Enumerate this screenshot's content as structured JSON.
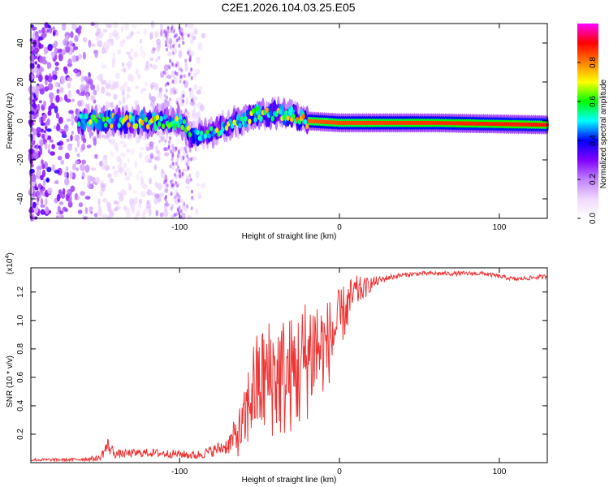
{
  "figure": {
    "title": "C2E1.2026.104.03.25.E05"
  },
  "chart_data": [
    {
      "type": "heatmap",
      "xlabel": "Height of straight line (km)",
      "ylabel": "Frequency (Hz)",
      "xlim": [
        -193,
        130
      ],
      "ylim": [
        -50,
        50
      ],
      "xticks": [
        -100,
        0,
        100
      ],
      "xtick_labels": [
        "-100",
        "0",
        "100"
      ],
      "yticks": [
        -40,
        -20,
        0,
        20,
        40
      ],
      "ytick_labels": [
        "-40",
        "-20",
        "0",
        "20",
        "40"
      ],
      "colorbar": {
        "label": "Normalized spectral amplitude",
        "range": [
          0.0,
          1.0
        ],
        "ticks": [
          0.0,
          0.2,
          0.4,
          0.6,
          0.8
        ],
        "tick_labels": [
          "0.0",
          "0.2",
          "0.4",
          "0.6",
          "0.8"
        ],
        "colors": [
          "#ffffff",
          "#f0d8ff",
          "#c080ff",
          "#8000ff",
          "#0000ff",
          "#00ffff",
          "#00ff00",
          "#ffff00",
          "#ff8000",
          "#ff0000",
          "#ff00ff"
        ]
      },
      "ridge": {
        "description_points": [
          {
            "x": -163,
            "y": 0
          },
          {
            "x": -100,
            "y": 0
          },
          {
            "x": -92,
            "y": -8
          },
          {
            "x": -75,
            "y": -4
          },
          {
            "x": -55,
            "y": 3
          },
          {
            "x": -38,
            "y": 4
          },
          {
            "x": -20,
            "y": 0
          },
          {
            "x": 0,
            "y": -1
          },
          {
            "x": 60,
            "y": -1
          },
          {
            "x": 130,
            "y": -2
          }
        ],
        "amplitude": [
          0.35,
          0.6,
          0.3,
          0.35,
          0.45,
          0.5,
          0.8,
          0.85,
          0.9,
          0.95
        ]
      },
      "noise_band": {
        "x_start": -193,
        "x_end": -85,
        "peak_x": -193
      }
    },
    {
      "type": "line",
      "xlabel": "Height of straight line (km)",
      "ylabel": "SNR (10 * v/v)",
      "yscale_label": "(x10",
      "yscale_exponent": "4",
      "yscale_suffix": ")",
      "xlim": [
        -193,
        130
      ],
      "ylim": [
        0,
        1.37
      ],
      "xticks": [
        -100,
        0,
        100
      ],
      "xtick_labels": [
        "-100",
        "0",
        "100"
      ],
      "yticks": [
        0.2,
        0.4,
        0.6,
        0.8,
        1.0,
        1.2
      ],
      "ytick_labels": [
        "0.2",
        "0.4",
        "0.6",
        "0.8",
        "1.0",
        "1.2"
      ],
      "series": [
        {
          "name": "SNR",
          "color": "#ee3333",
          "x": [
            -193,
            -170,
            -150,
            -145,
            -140,
            -120,
            -100,
            -90,
            -80,
            -70,
            -60,
            -55,
            -50,
            -45,
            -40,
            -35,
            -30,
            -25,
            -20,
            -15,
            -10,
            -5,
            0,
            5,
            10,
            15,
            20,
            25,
            30,
            35,
            40,
            50,
            60,
            70,
            80,
            90,
            100,
            110,
            120,
            130
          ],
          "values": [
            0.02,
            0.02,
            0.03,
            0.12,
            0.06,
            0.07,
            0.06,
            0.05,
            0.08,
            0.12,
            0.25,
            0.5,
            0.55,
            0.6,
            0.62,
            0.6,
            0.62,
            0.65,
            0.75,
            0.82,
            0.8,
            0.88,
            1.0,
            1.1,
            1.2,
            1.22,
            1.26,
            1.28,
            1.3,
            1.31,
            1.32,
            1.33,
            1.33,
            1.33,
            1.33,
            1.33,
            1.31,
            1.29,
            1.3,
            1.31
          ],
          "noise_amplitude": [
            0.01,
            0.01,
            0.02,
            0.06,
            0.03,
            0.03,
            0.03,
            0.03,
            0.04,
            0.06,
            0.22,
            0.35,
            0.4,
            0.42,
            0.45,
            0.45,
            0.42,
            0.45,
            0.45,
            0.45,
            0.32,
            0.3,
            0.22,
            0.18,
            0.12,
            0.08,
            0.05,
            0.03,
            0.02,
            0.02,
            0.015,
            0.015,
            0.015,
            0.015,
            0.015,
            0.015,
            0.015,
            0.015,
            0.015,
            0.015
          ]
        }
      ]
    }
  ]
}
